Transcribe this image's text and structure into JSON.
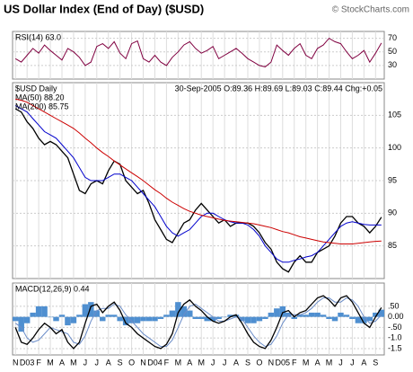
{
  "header": {
    "title": "US Dollar Index (End of Day) ($USD)",
    "credit": "© StockCharts.com"
  },
  "chart_data": [
    {
      "type": "line",
      "ylim": [
        10,
        80
      ],
      "yticks": [
        30,
        50,
        70
      ],
      "grid": true,
      "series": [
        {
          "name": "RSI(14) 63.0",
          "color": "#800040",
          "values": [
            40,
            35,
            45,
            55,
            48,
            60,
            52,
            45,
            38,
            55,
            50,
            42,
            30,
            35,
            58,
            62,
            55,
            65,
            48,
            40,
            62,
            66,
            40,
            35,
            45,
            35,
            30,
            42,
            50,
            60,
            65,
            55,
            48,
            52,
            58,
            40,
            45,
            50,
            55,
            48,
            40,
            35,
            30,
            28,
            35,
            60,
            52,
            45,
            55,
            62,
            45,
            40,
            55,
            60,
            70,
            65,
            62,
            50,
            40,
            45,
            52,
            35,
            48,
            63
          ]
        }
      ]
    },
    {
      "type": "line",
      "ylim": [
        80,
        110
      ],
      "yticks": [
        85,
        90,
        95,
        100,
        105
      ],
      "grid": true,
      "annotation": "30-Sep-2005 O:89.36 H:89.69 L:89.03 C:89.44 Chg:+0.05",
      "series": [
        {
          "name": "$USD Daily",
          "color": "#000000",
          "values": [
            106,
            105.5,
            104,
            103,
            101.5,
            100.5,
            101,
            100.5,
            99.5,
            98.5,
            96,
            93.5,
            93,
            94.5,
            95,
            94.5,
            96.5,
            98,
            97.5,
            95,
            94,
            93,
            93.5,
            91.5,
            89,
            87.5,
            86,
            85.5,
            87,
            88.5,
            89,
            90.5,
            91.5,
            90.5,
            89.5,
            88.5,
            89,
            88,
            88.5,
            88.5,
            88.5,
            88,
            87,
            85.5,
            84.5,
            82.5,
            81.5,
            81,
            82.5,
            83.5,
            82.5,
            82.5,
            84,
            84.5,
            85,
            86.5,
            88.5,
            89.5,
            89.5,
            88.5,
            88,
            87,
            88,
            89.4
          ]
        },
        {
          "name": "MA(50) 88.20",
          "color": "#0000cc",
          "values": [
            106.5,
            106,
            105.5,
            104.5,
            103.5,
            102.5,
            102,
            101.5,
            100.5,
            99.5,
            98.5,
            97,
            95.5,
            95,
            95,
            95,
            95.5,
            96,
            96,
            95.5,
            95,
            94,
            93,
            92,
            91,
            89.5,
            88,
            87,
            86.5,
            87,
            87.5,
            88.5,
            89.5,
            90,
            90,
            89.5,
            89,
            88.7,
            88.5,
            88.5,
            88.2,
            87.5,
            86.5,
            85,
            84,
            83,
            82.5,
            82.5,
            82.8,
            83,
            83.3,
            83.5,
            84,
            85,
            86,
            87,
            88,
            88.5,
            88.7,
            88.5,
            88.3,
            88.2,
            88.2,
            88.2
          ]
        },
        {
          "name": "MA(200) 85.75",
          "color": "#cc0000",
          "values": [
            107.5,
            107.3,
            107,
            106.5,
            106,
            105.5,
            105,
            104.5,
            104,
            103.5,
            103,
            102.3,
            101.5,
            100.8,
            100,
            99.3,
            98.7,
            98,
            97.4,
            96.8,
            96.2,
            95.6,
            95,
            94.3,
            93.6,
            93,
            92.3,
            91.7,
            91.2,
            90.7,
            90.3,
            90,
            89.7,
            89.5,
            89.3,
            89.1,
            88.9,
            88.8,
            88.7,
            88.6,
            88.5,
            88.4,
            88.2,
            88,
            87.8,
            87.5,
            87.2,
            87,
            86.7,
            86.4,
            86.2,
            86,
            85.8,
            85.6,
            85.5,
            85.4,
            85.3,
            85.3,
            85.3,
            85.4,
            85.5,
            85.6,
            85.7,
            85.75
          ]
        }
      ]
    },
    {
      "type": "line",
      "ylim": [
        -1.8,
        1.6
      ],
      "grid": true,
      "yticks": [
        {
          "value": 0.5,
          "label": ".50"
        },
        {
          "value": 0,
          "label": "0.00"
        },
        {
          "value": -0.5,
          "label": "-.50"
        },
        {
          "value": -1,
          "label": "-1.0"
        },
        {
          "value": -1.5,
          "label": "-1.5"
        }
      ],
      "categories": [
        "N",
        null,
        "D03",
        null,
        "F",
        null,
        "M",
        null,
        "A",
        null,
        "M",
        null,
        "J",
        null,
        "J",
        null,
        "A",
        null,
        "S",
        null,
        "O",
        null,
        "N",
        null,
        "D04",
        null,
        "F",
        null,
        "M",
        null,
        "A",
        null,
        "M",
        null,
        "J",
        null,
        "J",
        null,
        "A",
        null,
        "S",
        null,
        "O",
        null,
        "N",
        null,
        "D05",
        null,
        "F",
        null,
        "M",
        null,
        "A",
        null,
        "M",
        null,
        "J",
        null,
        "J",
        null,
        "A",
        null,
        "S",
        null
      ],
      "series": [
        {
          "style": "histogram",
          "color": "#4f8fd0",
          "values": [
            -0.2,
            -0.7,
            -0.3,
            0.2,
            0.5,
            0.5,
            0,
            -0.2,
            0.1,
            -0.4,
            -0.3,
            0.1,
            0.6,
            0.7,
            0.3,
            -0.2,
            0.1,
            0.1,
            -0.2,
            -0.4,
            -0.3,
            -0.3,
            -0.2,
            -0.2,
            -0.2,
            -0.1,
            0.1,
            0.3,
            0.7,
            0.5,
            0.3,
            -0.1,
            -0.1,
            -0.2,
            -0.2,
            -0.1,
            0,
            0.1,
            0.1,
            -0.2,
            -0.3,
            -0.3,
            -0.2,
            -0.1,
            0.2,
            0.4,
            0.5,
            0.2,
            -0.1,
            0.1,
            0.1,
            0.2,
            0.2,
            0.1,
            -0.1,
            -0.2,
            0.2,
            0.1,
            -0.1,
            -0.3,
            -0.3,
            -0.2,
            0.2,
            0.34
          ]
        },
        {
          "color": "#6a8cc8",
          "values": [
            -0.3,
            -0.5,
            -1.0,
            -1.2,
            -1.1,
            -0.8,
            -0.5,
            -0.6,
            -0.7,
            -0.8,
            -1.2,
            -1.3,
            -0.9,
            -0.2,
            0.3,
            0.4,
            0.4,
            0.6,
            0.5,
            0.1,
            -0.2,
            -0.5,
            -0.8,
            -1,
            -1.2,
            -1.4,
            -1.4,
            -1.1,
            -0.5,
            0.1,
            0.5,
            0.6,
            0.4,
            0.2,
            0,
            -0.2,
            -0.2,
            -0.1,
            0,
            -0.1,
            -0.5,
            -0.9,
            -1.2,
            -1.4,
            -1.3,
            -0.9,
            -0.3,
            0.1,
            0.1,
            0.1,
            0.2,
            0.4,
            0.7,
            0.9,
            0.9,
            0.7,
            0.7,
            0.9,
            0.8,
            0.5,
            0,
            -0.3,
            -0.2,
            0.1
          ]
        },
        {
          "name": "MACD(12,26,9) 0.44",
          "color": "#000000",
          "values": [
            -0.5,
            -1.2,
            -1.3,
            -1,
            -0.6,
            -0.3,
            -0.5,
            -0.8,
            -0.6,
            -1.2,
            -1.5,
            -1.2,
            -0.3,
            0.5,
            0.6,
            0.2,
            0.5,
            0.7,
            0.3,
            -0.3,
            -0.5,
            -0.8,
            -1,
            -1.2,
            -1.4,
            -1.5,
            -1.3,
            -0.8,
            0.2,
            0.6,
            0.8,
            0.5,
            0.3,
            0,
            -0.2,
            -0.3,
            -0.2,
            0,
            0.1,
            -0.3,
            -0.8,
            -1.2,
            -1.4,
            -1.5,
            -1.1,
            -0.5,
            0.2,
            0.3,
            0,
            0.2,
            0.3,
            0.6,
            0.9,
            1,
            0.8,
            0.5,
            0.9,
            1,
            0.7,
            0.2,
            -0.3,
            -0.5,
            0,
            0.44
          ]
        }
      ]
    }
  ]
}
